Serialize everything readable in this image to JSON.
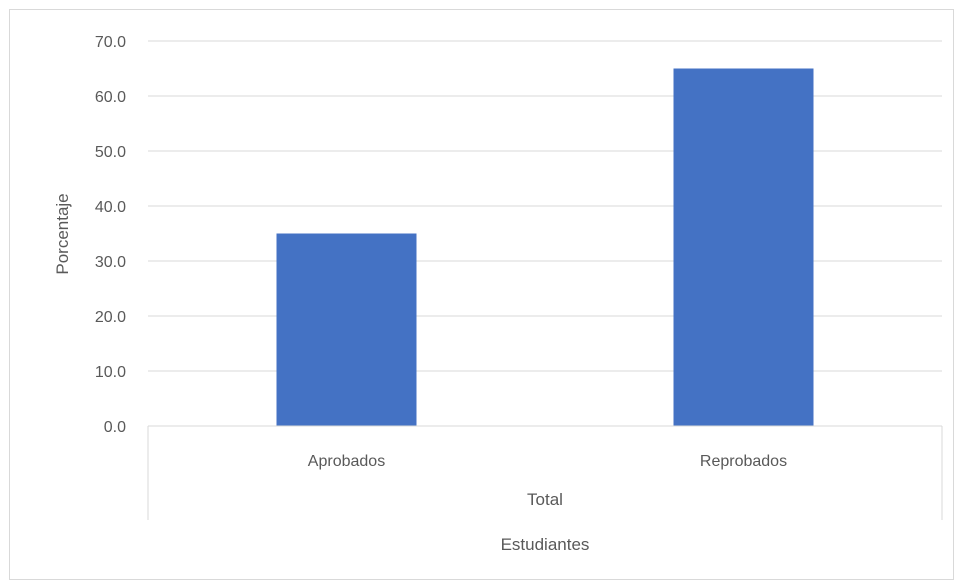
{
  "chart_data": {
    "type": "bar",
    "categories": [
      "Aprobados",
      "Reprobados"
    ],
    "category_group": "Total",
    "values": [
      35.0,
      65.0
    ],
    "title": "",
    "xlabel": "Estudiantes",
    "ylabel": "Porcentaje",
    "ylim": [
      0,
      70
    ],
    "yticks": [
      "0.0",
      "10.0",
      "20.0",
      "30.0",
      "40.0",
      "50.0",
      "60.0",
      "70.0"
    ],
    "grid": true,
    "legend": "none",
    "bar_color": "#4472c4",
    "gridline_color": "#d9d9d9",
    "text_color": "#595959"
  }
}
